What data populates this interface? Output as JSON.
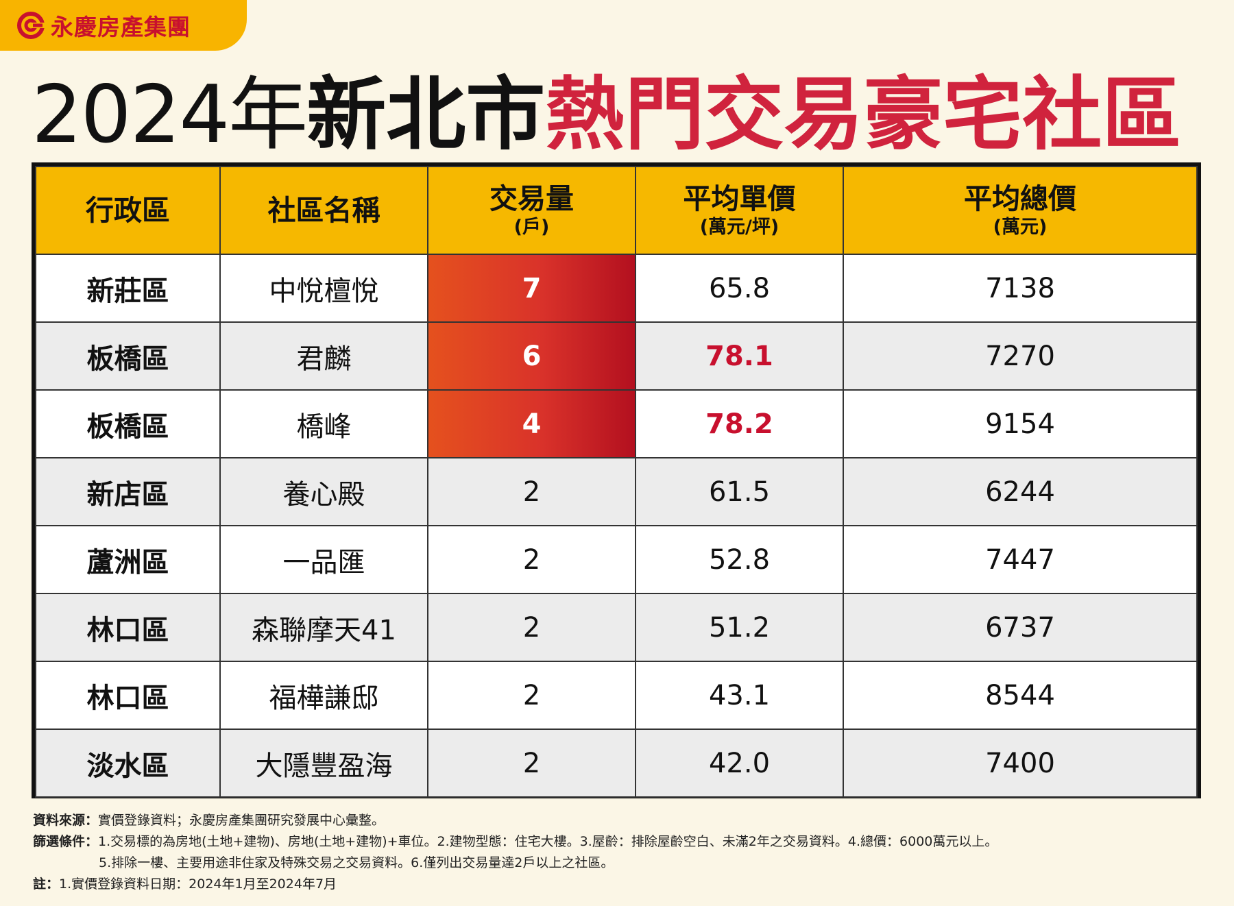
{
  "brand": {
    "name": "永慶房產集團",
    "color": "#c8102e",
    "accent": "#f8b400",
    "icon": "brand-circle-icon"
  },
  "title": {
    "year": "2024年",
    "city": "新北市",
    "highlight": "熱門交易豪宅社區",
    "highlight_color": "#d0233d"
  },
  "table": {
    "headers": [
      {
        "main": "行政區",
        "sub": ""
      },
      {
        "main": "社區名稱",
        "sub": ""
      },
      {
        "main": "交易量",
        "sub": "(戶)"
      },
      {
        "main": "平均單價",
        "sub": "(萬元/坪)"
      },
      {
        "main": "平均總價",
        "sub": "(萬元)"
      }
    ],
    "rows": [
      {
        "district": "新莊區",
        "community": "中悅檀悅",
        "volume": "7",
        "unit_price": "65.8",
        "total_price": "7138",
        "volume_highlight": true,
        "price_highlight": false
      },
      {
        "district": "板橋區",
        "community": "君麟",
        "volume": "6",
        "unit_price": "78.1",
        "total_price": "7270",
        "volume_highlight": true,
        "price_highlight": true
      },
      {
        "district": "板橋區",
        "community": "橋峰",
        "volume": "4",
        "unit_price": "78.2",
        "total_price": "9154",
        "volume_highlight": true,
        "price_highlight": true
      },
      {
        "district": "新店區",
        "community": "養心殿",
        "volume": "2",
        "unit_price": "61.5",
        "total_price": "6244",
        "volume_highlight": false,
        "price_highlight": false
      },
      {
        "district": "蘆洲區",
        "community": "一品匯",
        "volume": "2",
        "unit_price": "52.8",
        "total_price": "7447",
        "volume_highlight": false,
        "price_highlight": false
      },
      {
        "district": "林口區",
        "community": "森聯摩天41",
        "volume": "2",
        "unit_price": "51.2",
        "total_price": "6737",
        "volume_highlight": false,
        "price_highlight": false
      },
      {
        "district": "林口區",
        "community": "福樺謙邸",
        "volume": "2",
        "unit_price": "43.1",
        "total_price": "8544",
        "volume_highlight": false,
        "price_highlight": false
      },
      {
        "district": "淡水區",
        "community": "大隱豐盈海",
        "volume": "2",
        "unit_price": "42.0",
        "total_price": "7400",
        "volume_highlight": false,
        "price_highlight": false
      }
    ]
  },
  "notes": {
    "source_label": "資料來源：",
    "source_text": "實價登錄資料；永慶房產集團研究發展中心彙整。",
    "filter_label": "篩選條件：",
    "filter_line1": "1.交易標的為房地(土地+建物)、房地(土地+建物)+車位。2.建物型態：住宅大樓。3.屋齡：排除屋齡空白、未滿2年之交易資料。4.總價：6000萬元以上。",
    "filter_line2": "5.排除一樓、主要用途非住家及特殊交易之交易資料。6.僅列出交易量達2戶以上之社區。",
    "note_label": "註：",
    "note_text": "1.實價登錄資料日期：2024年1月至2024年7月"
  }
}
